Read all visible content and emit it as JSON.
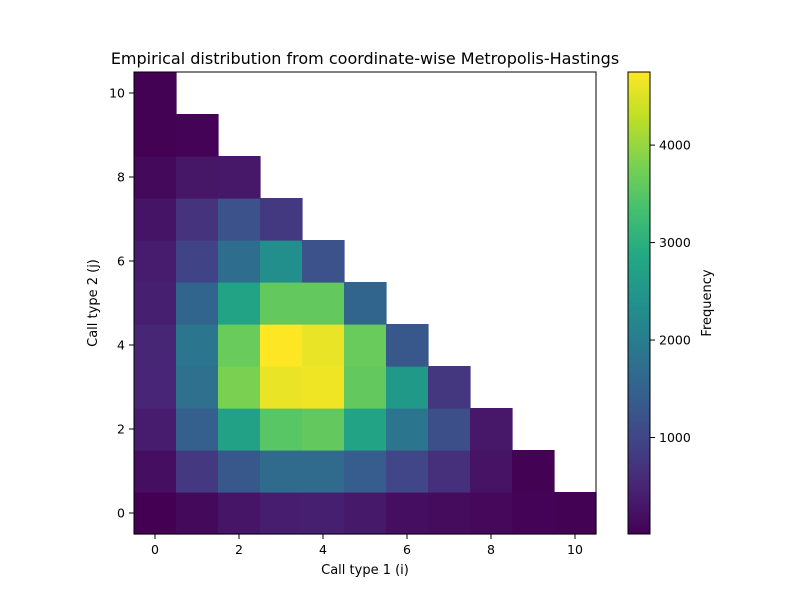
{
  "chart_data": {
    "type": "heatmap",
    "title": "Empirical distribution from coordinate-wise Metropolis-Hastings",
    "xlabel": "Call type 1 (i)",
    "ylabel": "Call type 2 (j)",
    "x": [
      0,
      1,
      2,
      3,
      4,
      5,
      6,
      7,
      8,
      9,
      10
    ],
    "y": [
      0,
      1,
      2,
      3,
      4,
      5,
      6,
      7,
      8,
      9,
      10
    ],
    "xlim": [
      -0.5,
      10.5
    ],
    "ylim": [
      -0.5,
      10.5
    ],
    "x_ticks": [
      0,
      2,
      4,
      6,
      8,
      10
    ],
    "y_ticks": [
      0,
      2,
      4,
      6,
      8,
      10
    ],
    "grid": false,
    "colormap": "viridis",
    "values": [
      [
        10,
        120,
        280,
        400,
        420,
        330,
        190,
        140,
        110,
        40,
        30
      ],
      [
        190,
        780,
        1300,
        1650,
        1650,
        1400,
        1000,
        650,
        260,
        20,
        null
      ],
      [
        380,
        1450,
        2700,
        3500,
        3600,
        2750,
        1850,
        1150,
        320,
        null,
        null
      ],
      [
        500,
        1750,
        3800,
        4600,
        4650,
        3600,
        2550,
        750,
        null,
        null,
        null
      ],
      [
        520,
        1850,
        3650,
        4750,
        4600,
        3650,
        1300,
        null,
        null,
        null,
        null
      ],
      [
        420,
        1550,
        2750,
        3600,
        3600,
        1550,
        null,
        null,
        null,
        null,
        null
      ],
      [
        380,
        950,
        1700,
        2350,
        1200,
        null,
        null,
        null,
        null,
        null,
        null
      ],
      [
        270,
        700,
        1200,
        800,
        null,
        null,
        null,
        null,
        null,
        null,
        null
      ],
      [
        120,
        290,
        320,
        null,
        null,
        null,
        null,
        null,
        null,
        null,
        null
      ],
      [
        30,
        40,
        null,
        null,
        null,
        null,
        null,
        null,
        null,
        null,
        null
      ],
      [
        20,
        null,
        null,
        null,
        null,
        null,
        null,
        null,
        null,
        null,
        null
      ]
    ],
    "value_note_rows": "values[j][i] row index = Call type 2 (j), column index = Call type 1 (i)",
    "colorbar": {
      "label": "Frequency",
      "range": [
        10,
        4750
      ],
      "ticks": [
        1000,
        2000,
        3000,
        4000
      ]
    }
  }
}
